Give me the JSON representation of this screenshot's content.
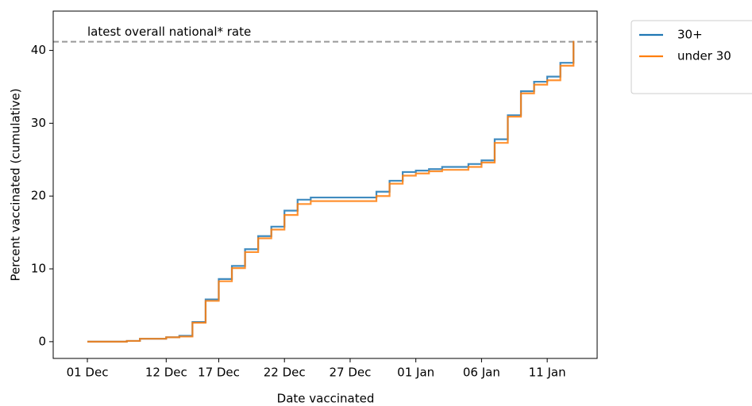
{
  "chart_data": {
    "type": "line",
    "step": "post",
    "xlabel": "Date vaccinated",
    "ylabel": "Percent vaccinated (cumulative)",
    "x": [
      0,
      1,
      2,
      3,
      4,
      5,
      6,
      7,
      8,
      9,
      10,
      11,
      12,
      13,
      14,
      15,
      16,
      17,
      18,
      19,
      20,
      21,
      22,
      23,
      24,
      25,
      26,
      27,
      28,
      29,
      30,
      31,
      32,
      33,
      34,
      35,
      36,
      37
    ],
    "series": [
      {
        "name": "30+",
        "color": "#1f77b4",
        "values": [
          0,
          0,
          0,
          0.1,
          0.4,
          0.4,
          0.6,
          0.8,
          2.7,
          5.8,
          8.6,
          10.4,
          12.7,
          14.5,
          15.8,
          18.0,
          19.5,
          19.8,
          19.8,
          19.8,
          19.8,
          19.8,
          20.6,
          22.1,
          23.3,
          23.5,
          23.7,
          24.0,
          24.0,
          24.4,
          24.9,
          27.8,
          31.1,
          34.4,
          35.7,
          36.4,
          38.3,
          41.3
        ]
      },
      {
        "name": "under 30",
        "color": "#ff7f0e",
        "values": [
          0,
          0,
          0,
          0.1,
          0.4,
          0.4,
          0.6,
          0.7,
          2.6,
          5.6,
          8.3,
          10.1,
          12.3,
          14.2,
          15.4,
          17.4,
          18.9,
          19.3,
          19.3,
          19.3,
          19.3,
          19.3,
          20.0,
          21.7,
          22.8,
          23.1,
          23.4,
          23.6,
          23.6,
          24.0,
          24.6,
          27.3,
          30.9,
          34.1,
          35.3,
          35.9,
          37.9,
          41.3
        ]
      }
    ],
    "reference_line": {
      "value": 41.2,
      "label": "latest overall national* rate",
      "color": "#999999"
    },
    "xlim": [
      -2.6,
      38.8
    ],
    "xticks": [
      {
        "value": 0,
        "label": "01 Dec"
      },
      {
        "value": 6,
        "label": "12 Dec"
      },
      {
        "value": 10,
        "label": "17 Dec"
      },
      {
        "value": 15,
        "label": "22 Dec"
      },
      {
        "value": 20,
        "label": "27 Dec"
      },
      {
        "value": 25,
        "label": "01 Jan"
      },
      {
        "value": 30,
        "label": "06 Jan"
      },
      {
        "value": 35,
        "label": "11 Jan"
      }
    ],
    "ylim": [
      -2.3,
      45.4
    ],
    "yticks": [
      0,
      10,
      20,
      30,
      40
    ],
    "grid": false,
    "legend": "outside-upper-right"
  }
}
